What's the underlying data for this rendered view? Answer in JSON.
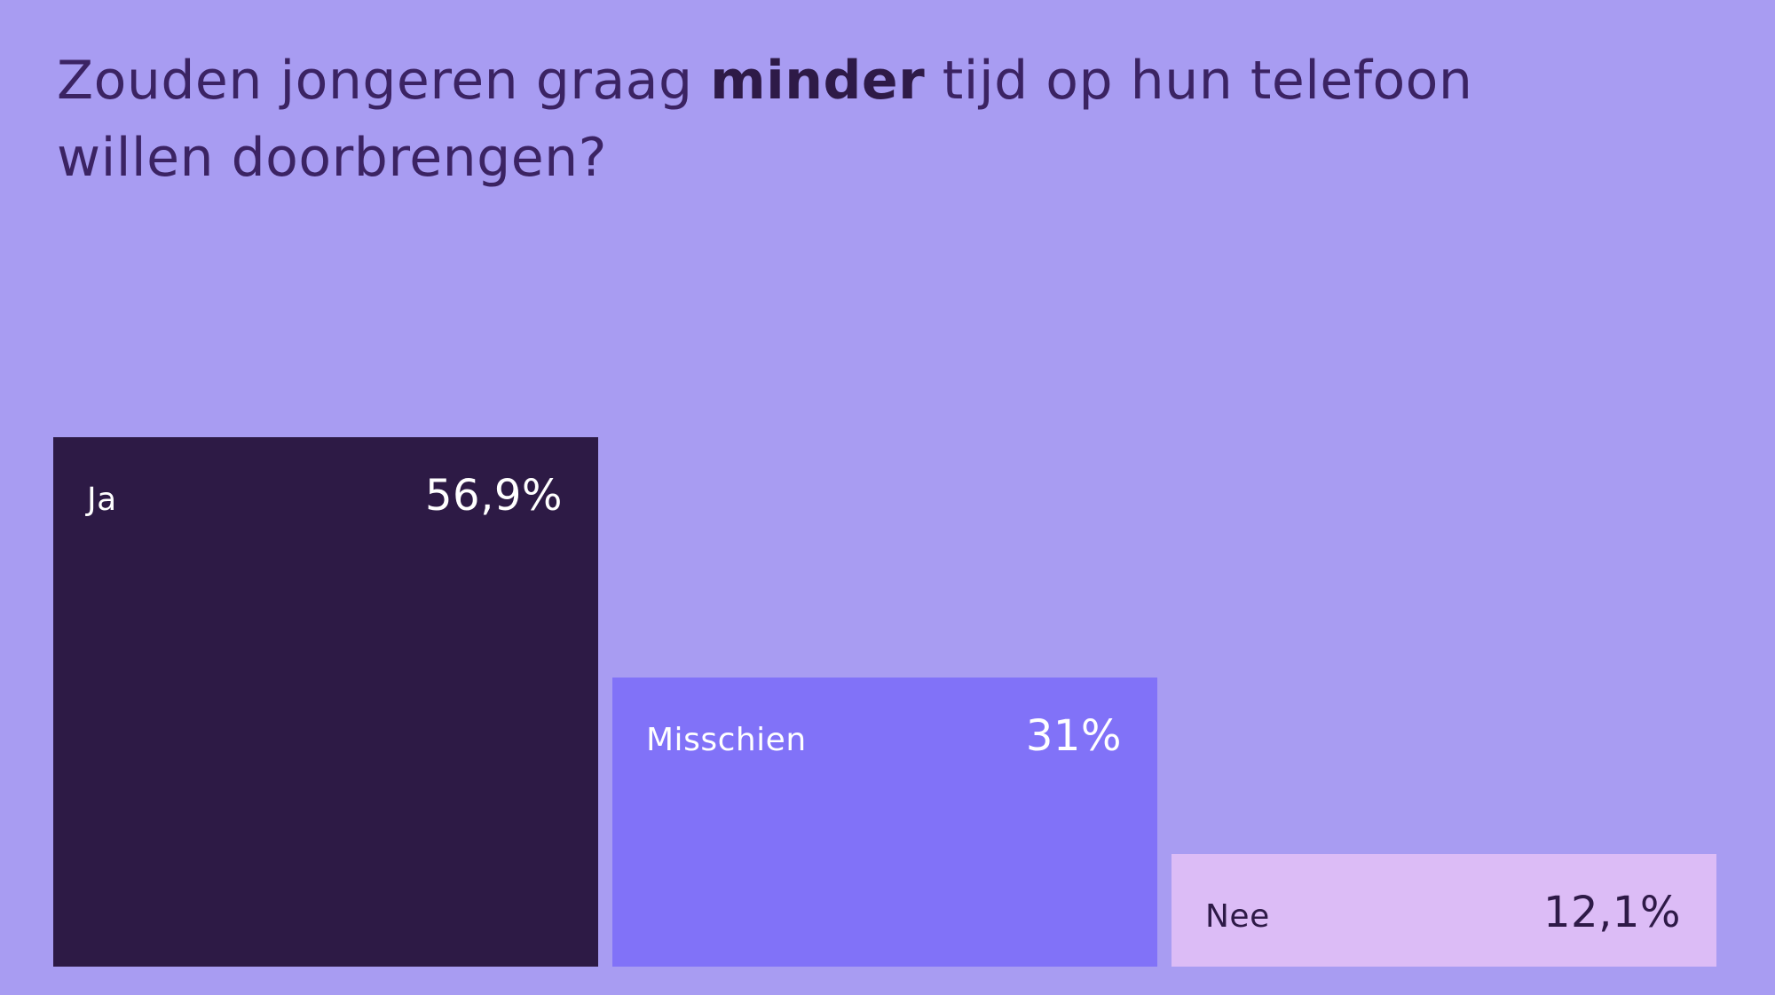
{
  "page": {
    "background_color": "#a89cf2"
  },
  "title": {
    "prefix": "Zouden jongeren graag ",
    "bold": "minder",
    "suffix": " tijd op hun telefoon willen doorbrengen?",
    "color": "#3b2363"
  },
  "chart_data": {
    "type": "bar",
    "title": "Zouden jongeren graag minder tijd op hun telefoon willen doorbrengen?",
    "categories": [
      "Ja",
      "Misschien",
      "Nee"
    ],
    "values": [
      56.9,
      31,
      12.1
    ],
    "value_labels": [
      "56,9%",
      "31%",
      "12,1%"
    ],
    "xlabel": "",
    "ylabel": "",
    "ylim": [
      0,
      60
    ],
    "grid": false,
    "legend_position": "none",
    "bar_colors": [
      "#2d1a45",
      "#8172f8",
      "#dcbcf6"
    ],
    "label_colors": [
      "#ffffff",
      "#ffffff",
      "#2e1a47"
    ],
    "labels_inside_bars": true
  },
  "bars": [
    {
      "label": "Ja",
      "value": 56.9,
      "value_label": "56,9%",
      "color": "#2d1a45",
      "text_color": "#ffffff"
    },
    {
      "label": "Misschien",
      "value": 31,
      "value_label": "31%",
      "color": "#8172f8",
      "text_color": "#ffffff"
    },
    {
      "label": "Nee",
      "value": 12.1,
      "value_label": "12,1%",
      "color": "#dcbcf6",
      "text_color": "#2e1a47"
    }
  ]
}
